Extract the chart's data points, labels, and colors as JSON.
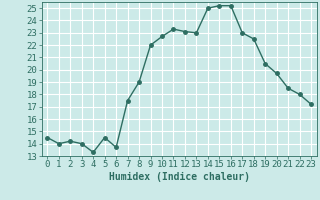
{
  "x": [
    0,
    1,
    2,
    3,
    4,
    5,
    6,
    7,
    8,
    9,
    10,
    11,
    12,
    13,
    14,
    15,
    16,
    17,
    18,
    19,
    20,
    21,
    22,
    23
  ],
  "y": [
    14.5,
    14.0,
    14.2,
    14.0,
    13.3,
    14.5,
    13.7,
    17.5,
    19.0,
    22.0,
    22.7,
    23.3,
    23.1,
    23.0,
    25.0,
    25.2,
    25.2,
    23.0,
    22.5,
    20.5,
    19.7,
    18.5,
    18.0,
    17.2
  ],
  "line_color": "#2e6e62",
  "marker": "o",
  "markersize": 2.5,
  "linewidth": 1.0,
  "bg_color": "#cceae8",
  "grid_color": "#ffffff",
  "xlabel": "Humidex (Indice chaleur)",
  "xlim": [
    -0.5,
    23.5
  ],
  "ylim": [
    13,
    25.5
  ],
  "yticks": [
    13,
    14,
    15,
    16,
    17,
    18,
    19,
    20,
    21,
    22,
    23,
    24,
    25
  ],
  "xticks": [
    0,
    1,
    2,
    3,
    4,
    5,
    6,
    7,
    8,
    9,
    10,
    11,
    12,
    13,
    14,
    15,
    16,
    17,
    18,
    19,
    20,
    21,
    22,
    23
  ],
  "xlabel_fontsize": 7,
  "tick_fontsize": 6.5
}
